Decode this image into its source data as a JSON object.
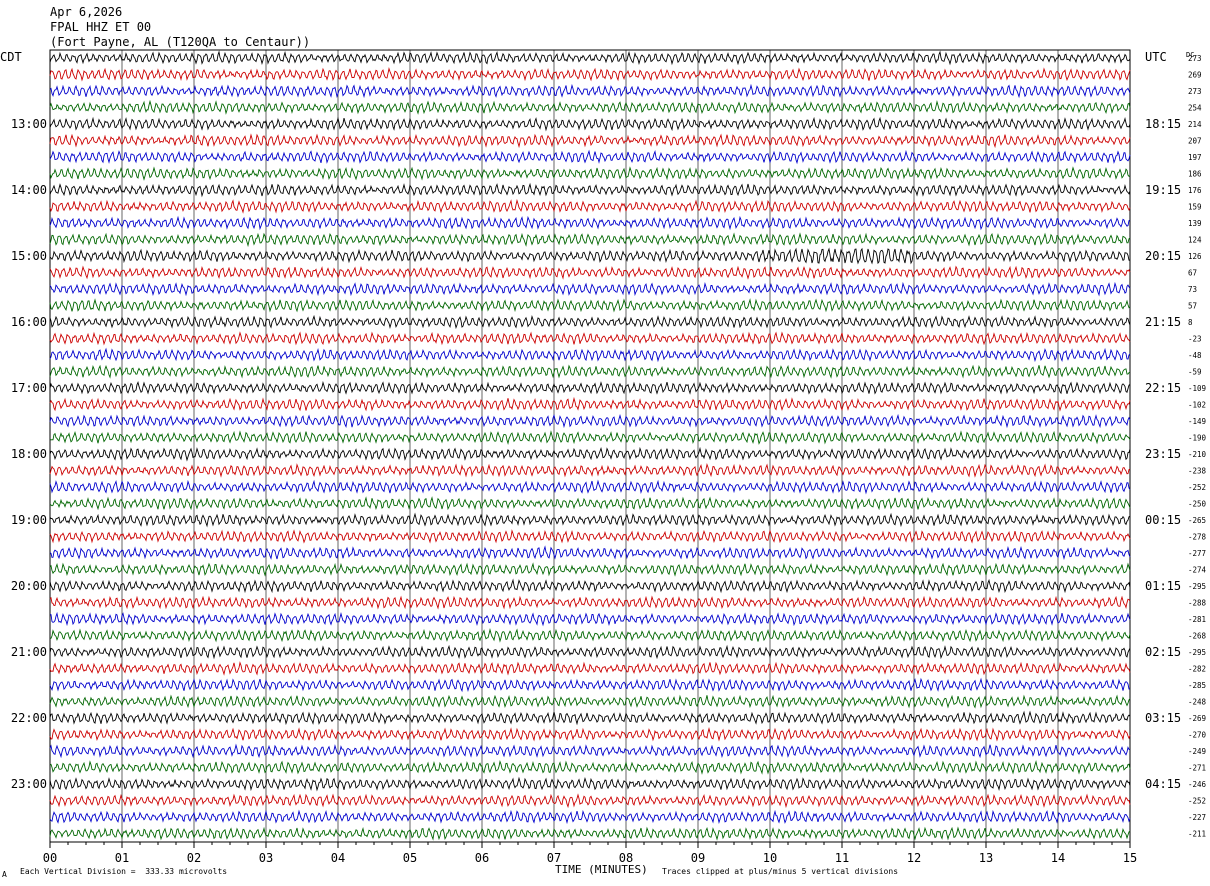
{
  "header": {
    "date": "Apr 6,2026",
    "station": "FPAL HHZ ET 00",
    "location": "(Fort Payne, AL (T120QA to Centaur))"
  },
  "footer": {
    "left_mark": "A",
    "scale_note": "Each Vertical Division =  333.33 microvolts",
    "clip_note": "Traces clipped at plus/minus 5 vertical divisions"
  },
  "chart_data": {
    "type": "line",
    "title": "FPAL HHZ ET 00",
    "xlabel": "TIME (MINUTES)",
    "left_axis_label": "CDT",
    "right_axis_label": "UTC",
    "dc_label": "DC",
    "xlim": [
      0,
      15
    ],
    "x_ticks": [
      "00",
      "01",
      "02",
      "03",
      "04",
      "05",
      "06",
      "07",
      "08",
      "09",
      "10",
      "11",
      "12",
      "13",
      "14",
      "15"
    ],
    "grid": "vertical every minute",
    "trace_colors": [
      "#000000",
      "#cc0000",
      "#0000cc",
      "#006600"
    ],
    "trace_count": 48,
    "minutes_per_trace": 15,
    "left_hour_labels": [
      "13:00",
      "14:00",
      "15:00",
      "16:00",
      "17:00",
      "18:00",
      "19:00",
      "20:00",
      "21:00",
      "22:00",
      "23:00"
    ],
    "right_hour_labels": [
      "18:15",
      "19:15",
      "20:15",
      "21:15",
      "22:15",
      "23:15",
      "00:15",
      "01:15",
      "02:15",
      "03:15",
      "04:15"
    ],
    "hour_label_first_trace": 4,
    "dc_offsets": [
      "273",
      "269",
      "273",
      "254",
      "214",
      "207",
      "197",
      "186",
      "176",
      "159",
      "139",
      "124",
      "126",
      "67",
      "73",
      "57",
      "8",
      "-23",
      "-48",
      "-59",
      "-109",
      "-102",
      "-149",
      "-190",
      "-210",
      "-238",
      "-252",
      "-250",
      "-265",
      "-278",
      "-277",
      "-274",
      "-295",
      "-288",
      "-281",
      "-268",
      "-295",
      "-282",
      "-285",
      "-248",
      "-269",
      "-270",
      "-249",
      "-271",
      "-246",
      "-252",
      "-227",
      "-211"
    ],
    "event_annotation": {
      "trace": 12,
      "minute_start": 9.8,
      "minute_end": 12.0,
      "description": "higher amplitude burst"
    }
  }
}
